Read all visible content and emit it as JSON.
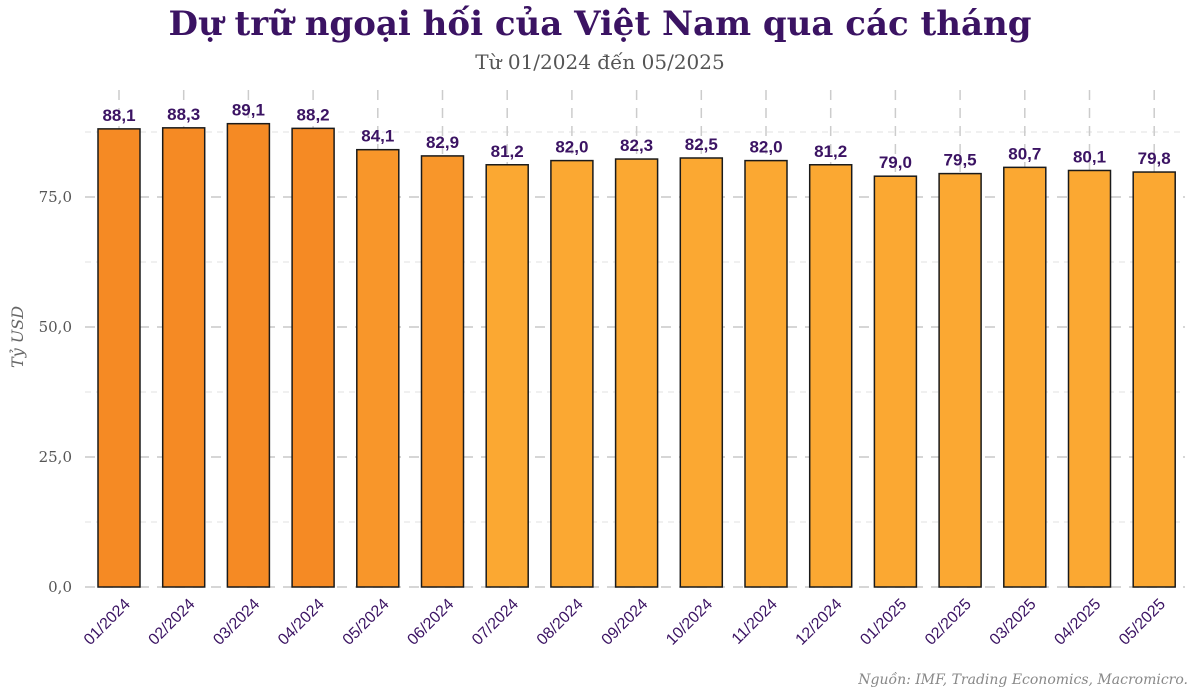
{
  "chart_data": {
    "type": "bar",
    "title": "Dự trữ ngoại hối của Việt Nam qua các tháng",
    "subtitle": "Từ 01/2024 đến 05/2025",
    "ylabel": "Tỷ USD",
    "xlabel": "",
    "source": "Nguồn: IMF, Trading Economics, Macromicro.",
    "ylim": [
      0,
      90
    ],
    "yticks": [
      0,
      25,
      50,
      75
    ],
    "ytick_labels": [
      "0,0",
      "25,0",
      "50,0",
      "75,0"
    ],
    "grid": true,
    "categories": [
      "01/2024",
      "02/2024",
      "03/2024",
      "04/2024",
      "05/2024",
      "06/2024",
      "07/2024",
      "08/2024",
      "09/2024",
      "10/2024",
      "11/2024",
      "12/2024",
      "01/2025",
      "02/2025",
      "03/2025",
      "04/2025",
      "05/2025"
    ],
    "values": [
      88.1,
      88.3,
      89.1,
      88.2,
      84.1,
      82.9,
      81.2,
      82.0,
      82.3,
      82.5,
      82.0,
      81.2,
      79.0,
      79.5,
      80.7,
      80.1,
      79.8
    ],
    "value_labels": [
      "88,1",
      "88,3",
      "89,1",
      "88,2",
      "84,1",
      "82,9",
      "81,2",
      "82,0",
      "82,3",
      "82,5",
      "82,0",
      "81,2",
      "79,0",
      "79,5",
      "80,7",
      "80,1",
      "79,8"
    ],
    "colors": {
      "bar_2024_early": "#f58a24",
      "bar_mid": "#f8962a",
      "bar_late": "#fba832",
      "bar_outline": "#1a1a1a",
      "label": "#3b1363"
    }
  }
}
